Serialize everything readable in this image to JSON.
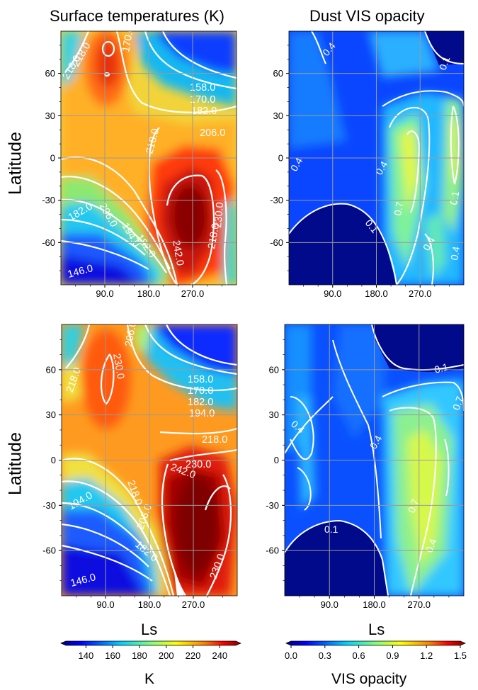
{
  "colors": {
    "jet_stops": [
      "#00007f",
      "#0000ff",
      "#007fff",
      "#00ffff",
      "#7fff7f",
      "#ffff00",
      "#ff7f00",
      "#ff0000",
      "#7f0000"
    ],
    "contour": "#ffffff",
    "grid": "#9a9a9a"
  },
  "titles": {
    "surface": "Surface temperatures (K)",
    "dust": "Dust VIS opacity",
    "row_label_top": "Latitude",
    "row_label_bottom": "Latitude",
    "xlabel_left": "Ls",
    "xlabel_right": "Ls"
  },
  "colorbars": {
    "temperature": {
      "label": "K",
      "ticks": [
        "140",
        "160",
        "180",
        "200",
        "220",
        "240"
      ],
      "range": [
        125,
        252
      ]
    },
    "opacity": {
      "label": "VIS opacity",
      "ticks": [
        "0.0",
        "0.3",
        "0.6",
        "0.9",
        "1.2",
        "1.5"
      ],
      "range": [
        0.0,
        1.5
      ]
    }
  },
  "chart_data": [
    {
      "id": "top-left",
      "type": "contour",
      "title": "Surface temperatures (K)",
      "ylabel": "Latitude",
      "xlim": [
        0,
        360
      ],
      "ylim": [
        -90,
        90
      ],
      "xticks": [
        "90.0",
        "180.0",
        "270.0"
      ],
      "yticks": [
        "60",
        "30",
        "0",
        "-30",
        "-60"
      ],
      "contour_labels": [
        "218.0",
        "218.0",
        "170.0",
        "158.0",
        "170.0",
        "182.0",
        "206.0",
        "218.0",
        "182.0",
        "206.0",
        "194.0",
        "182.0",
        "242.0",
        "230.0",
        "218.0",
        "146.0"
      ]
    },
    {
      "id": "top-right",
      "type": "contour",
      "title": "Dust VIS opacity",
      "xlim": [
        0,
        360
      ],
      "ylim": [
        -90,
        90
      ],
      "xticks": [
        "90.0",
        "180.0",
        "270.0"
      ],
      "yticks": [
        "60",
        "30",
        "0",
        "-30",
        "-60"
      ],
      "contour_labels": [
        "0.4",
        "0.1",
        "0.4",
        "0.4",
        "0.7",
        "0.1",
        "0.4",
        "0.4",
        "0.1"
      ]
    },
    {
      "id": "bottom-left",
      "type": "contour",
      "ylabel": "Latitude",
      "xlabel": "Ls",
      "xlim": [
        0,
        360
      ],
      "ylim": [
        -90,
        90
      ],
      "xticks": [
        "90.0",
        "180.0",
        "270.0"
      ],
      "yticks": [
        "60",
        "30",
        "0",
        "-30",
        "-60"
      ],
      "contour_labels": [
        "218.0",
        "230.0",
        "206.0",
        "158.0",
        "170.0",
        "182.0",
        "194.0",
        "218.0",
        "230.0",
        "242.0",
        "218.0",
        "206.0",
        "194.0",
        "182.0",
        "230.0",
        "146.0"
      ]
    },
    {
      "id": "bottom-right",
      "type": "contour",
      "xlabel": "Ls",
      "xlim": [
        0,
        360
      ],
      "ylim": [
        -90,
        90
      ],
      "xticks": [
        "90.0",
        "180.0",
        "270.0"
      ],
      "yticks": [
        "60",
        "30",
        "0",
        "-30",
        "-60"
      ],
      "contour_labels": [
        "0.1",
        "0.4",
        "0.4",
        "0.7",
        "0.1",
        "0.4",
        "0.7"
      ]
    }
  ]
}
